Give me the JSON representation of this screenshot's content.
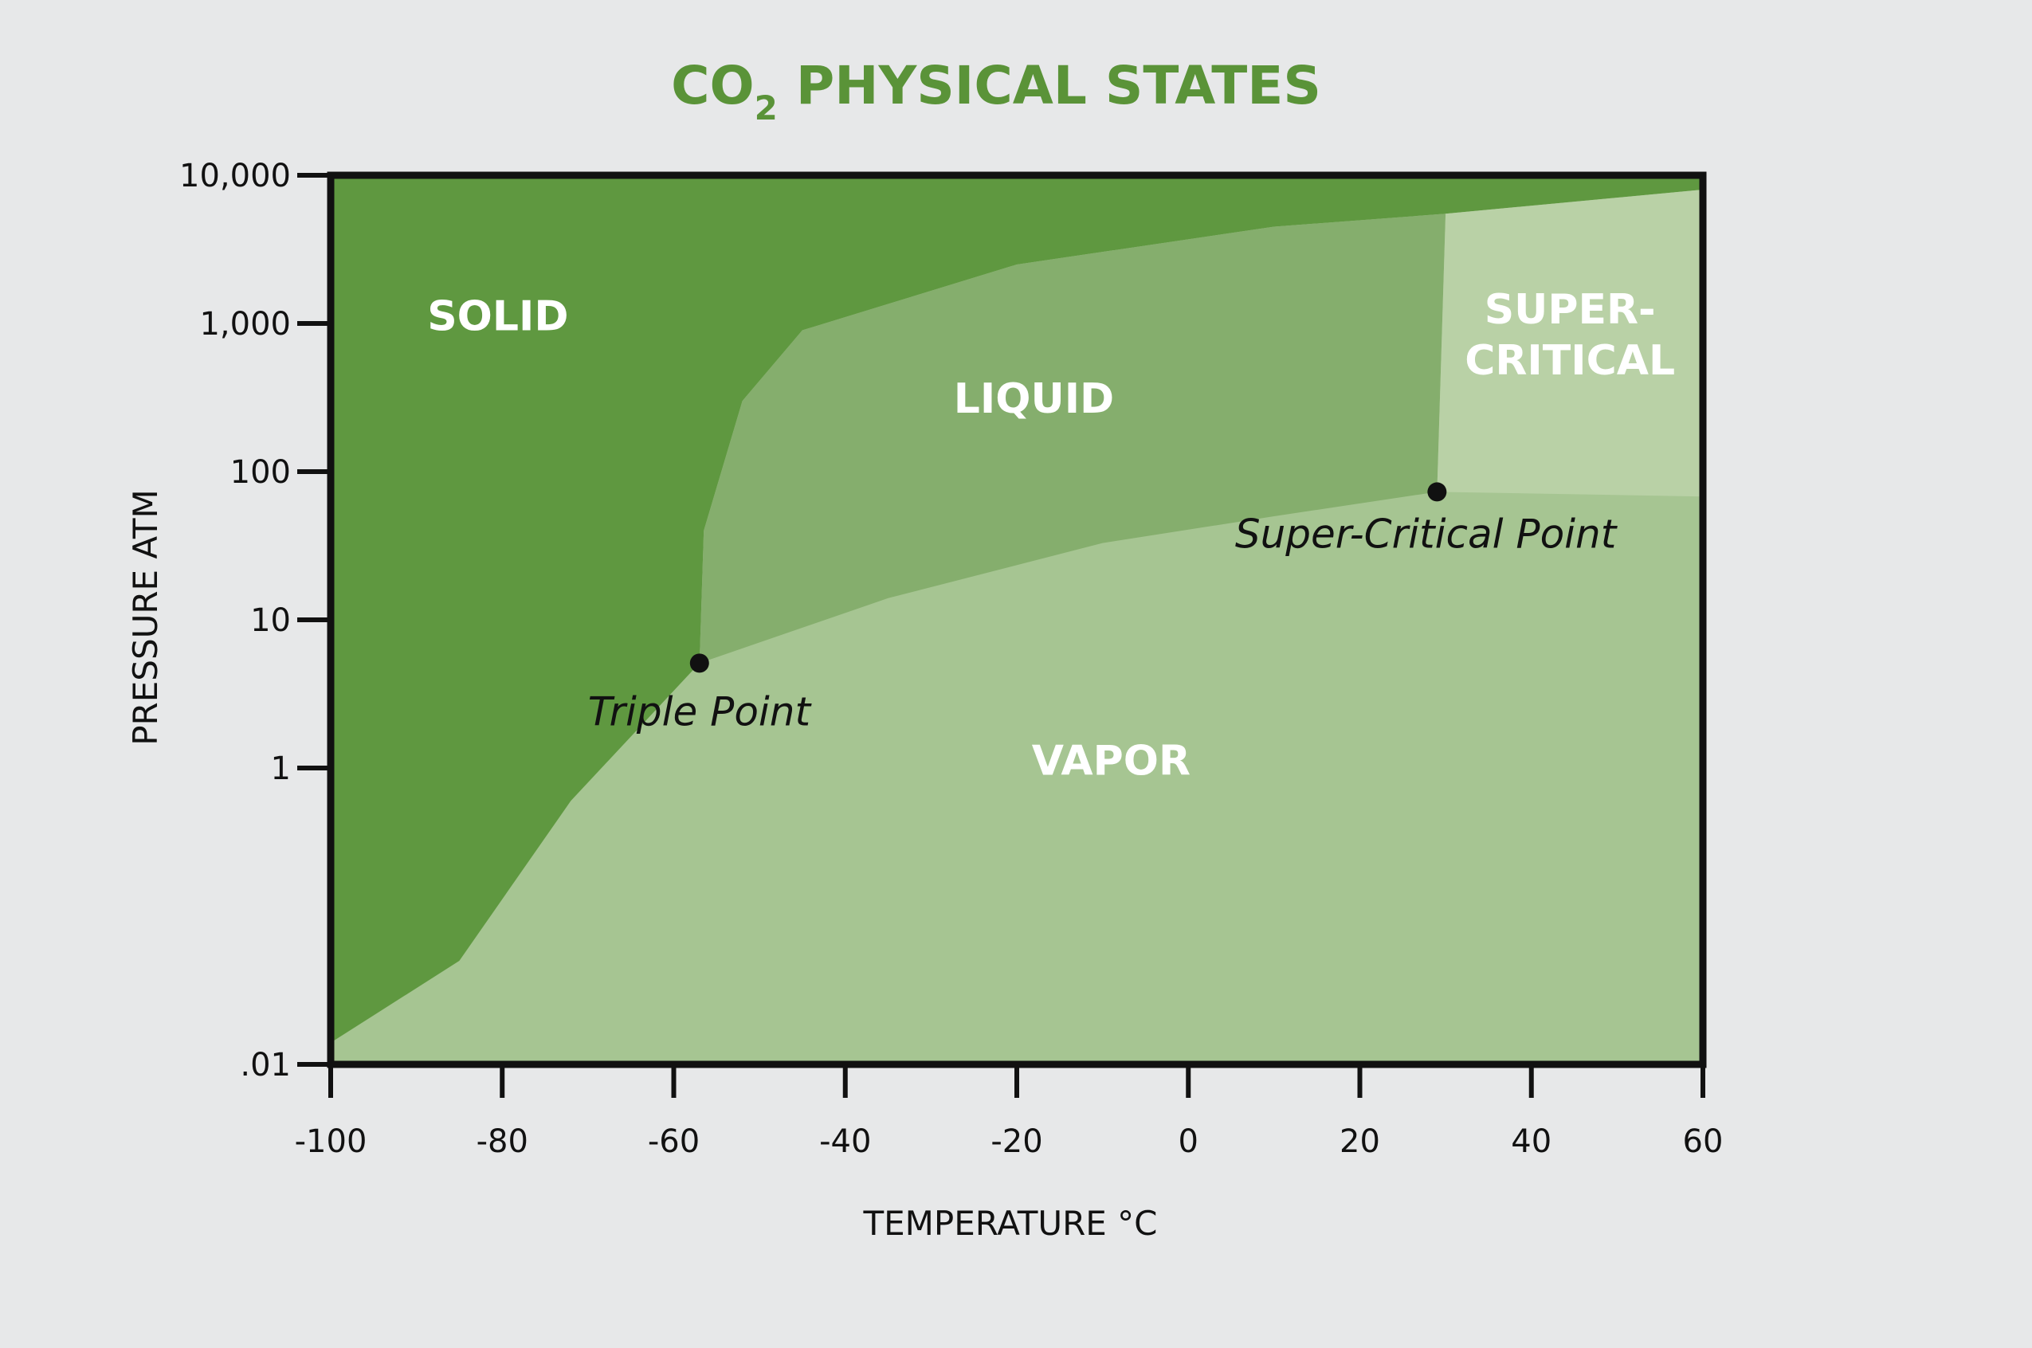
{
  "chart_data": {
    "type": "area",
    "title": "CO",
    "title_subscript": "2",
    "title_suffix": " PHYSICAL STATES",
    "xlabel": "TEMPERATURE °C",
    "ylabel": "PRESSURE ATM",
    "xlim": [
      -100,
      60
    ],
    "ylim": [
      0.01,
      10000
    ],
    "y_scale": "log",
    "x_ticks": [
      -100,
      -80,
      -60,
      -40,
      -20,
      0,
      20,
      40,
      60
    ],
    "x_tick_labels": [
      "-100",
      "-80",
      "-60",
      "-40",
      "-20",
      "0",
      "20",
      "40",
      "60"
    ],
    "y_ticks": [
      0.01,
      1,
      10,
      100,
      1000,
      10000
    ],
    "y_tick_labels": [
      ".01",
      "1",
      "10",
      "100",
      "1,000",
      "10,000"
    ],
    "grid": false,
    "regions": [
      {
        "name": "SOLID",
        "color": "#5f9840"
      },
      {
        "name": "LIQUID",
        "color": "#85ae6d"
      },
      {
        "name": "SUPER-\nCRITICAL",
        "color": "#b9d1a6"
      },
      {
        "name": "VAPOR",
        "color": "#a6c592"
      }
    ],
    "points": [
      {
        "label": "Triple Point",
        "x": -57,
        "y": 5.1
      },
      {
        "label": "Super-Critical Point",
        "x": 29,
        "y": 73
      }
    ],
    "boundaries": {
      "sublimation_curve": [
        [
          -100,
          0.014
        ],
        [
          -85,
          0.05
        ],
        [
          -72,
          0.6
        ],
        [
          -57,
          5.1
        ]
      ],
      "melting_curve": [
        [
          -57,
          5.1
        ],
        [
          -56.5,
          40
        ],
        [
          -52,
          300
        ],
        [
          -45,
          900
        ],
        [
          -20,
          2500
        ],
        [
          10,
          4500
        ],
        [
          30,
          5500
        ]
      ],
      "vaporization_curve": [
        [
          -57,
          5.1
        ],
        [
          -35,
          14
        ],
        [
          -10,
          33
        ],
        [
          10,
          50
        ],
        [
          29,
          73
        ]
      ],
      "supercritical_temperature_bound": [
        [
          29,
          73
        ],
        [
          30,
          5500
        ]
      ],
      "supercritical_pressure_bound": [
        [
          29,
          73
        ],
        [
          60,
          68
        ]
      ],
      "upper_solid_bound": [
        [
          30,
          5500
        ],
        [
          60,
          8000
        ]
      ]
    },
    "colors": {
      "title": "#5a9338",
      "axis": "#111111",
      "point": "#111111",
      "region_label": "#ffffff",
      "background": "#e7e8e9"
    }
  }
}
